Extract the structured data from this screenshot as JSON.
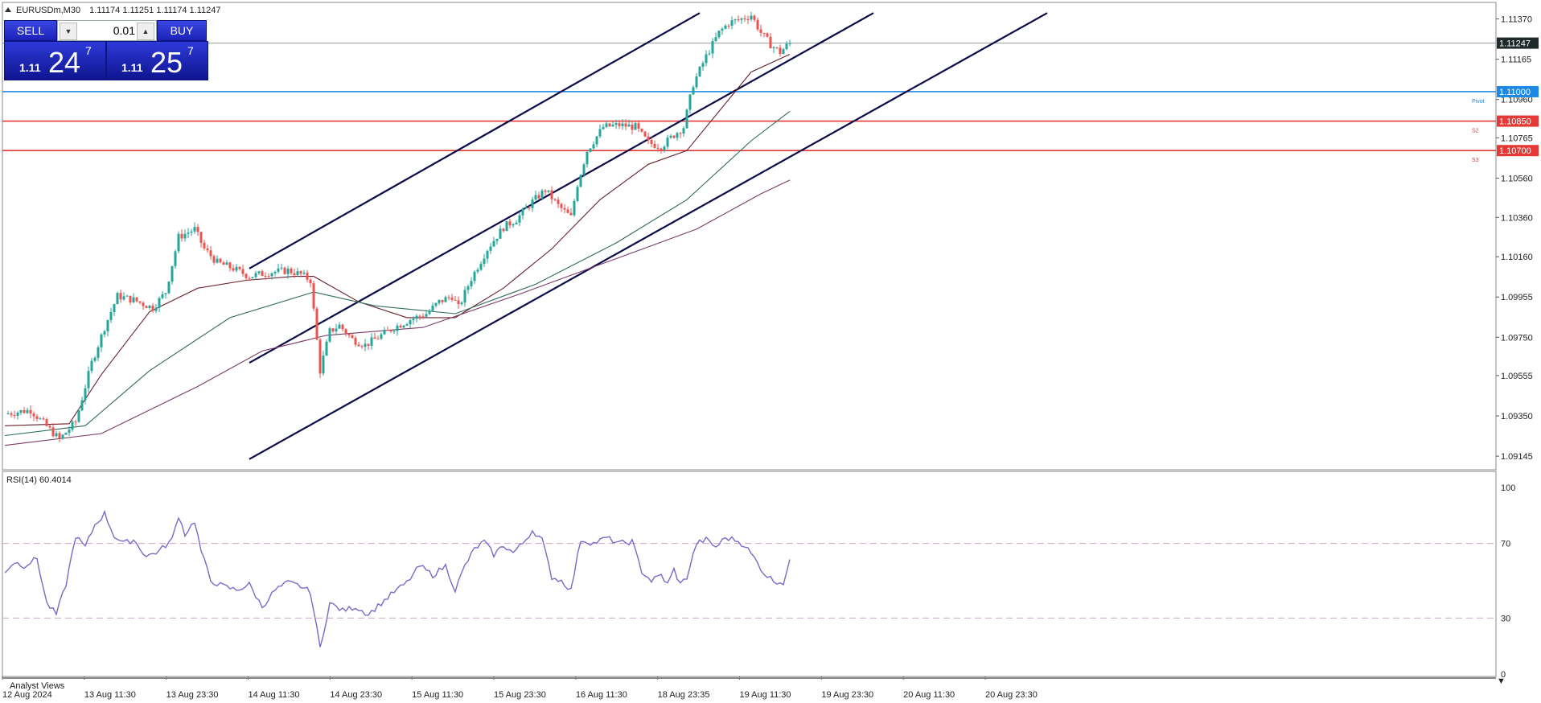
{
  "header": {
    "symbol_label": "EURUSDm,M30",
    "ohlc": "1.11174 1.11251 1.11174 1.11247"
  },
  "trade_panel": {
    "sell_label": "SELL",
    "buy_label": "BUY",
    "lot_value": "0.01",
    "sell_price_small": "1.11",
    "sell_price_big": "24",
    "sell_price_sup": "7",
    "buy_price_small": "1.11",
    "buy_price_big": "25",
    "buy_price_sup": "7"
  },
  "colors": {
    "candle_up": "#26a69a",
    "candle_down": "#ef5350",
    "channel": "#0a0a4a",
    "pivot": "#1e88e5",
    "support": "#e53935",
    "rsi_line": "#7b68c8"
  },
  "chart_data": [
    {
      "type": "candlestick",
      "title": "EURUSDm,M30",
      "price_axis_ticks": [
        "1.11370",
        "1.11165",
        "1.10960",
        "1.10765",
        "1.10560",
        "1.10360",
        "1.10160",
        "1.09955",
        "1.09750",
        "1.09555",
        "1.09350",
        "1.09145"
      ],
      "ylim": [
        1.0908,
        1.1145
      ],
      "current_price": 1.11247,
      "current_price_label": "1.11247",
      "horizontal_levels": [
        {
          "name": "Pivot",
          "value": 1.11,
          "label": "1.11000",
          "color": "#1e88e5"
        },
        {
          "name": "S2",
          "value": 1.1085,
          "label": "1.10850",
          "color": "#e53935"
        },
        {
          "name": "S3",
          "value": 1.107,
          "label": "1.10700",
          "color": "#e53935"
        }
      ],
      "time_labels": [
        "12 Aug 2024",
        "13 Aug 11:30",
        "13 Aug 23:30",
        "14 Aug 11:30",
        "14 Aug 23:30",
        "15 Aug 11:30",
        "15 Aug 23:30",
        "16 Aug 11:30",
        "18 Aug 23:35",
        "19 Aug 11:30",
        "19 Aug 23:30",
        "20 Aug 11:30",
        "20 Aug 23:30"
      ],
      "price_path": [
        {
          "i": 0,
          "p": 1.0936
        },
        {
          "i": 8,
          "p": 1.0938
        },
        {
          "i": 14,
          "p": 1.0928
        },
        {
          "i": 17,
          "p": 1.0923
        },
        {
          "i": 22,
          "p": 1.0932
        },
        {
          "i": 27,
          "p": 1.0962
        },
        {
          "i": 31,
          "p": 1.098
        },
        {
          "i": 35,
          "p": 1.0996
        },
        {
          "i": 40,
          "p": 1.0994
        },
        {
          "i": 46,
          "p": 1.099
        },
        {
          "i": 50,
          "p": 1.0998
        },
        {
          "i": 54,
          "p": 1.1026
        },
        {
          "i": 59,
          "p": 1.103
        },
        {
          "i": 62,
          "p": 1.102
        },
        {
          "i": 66,
          "p": 1.1013
        },
        {
          "i": 71,
          "p": 1.101
        },
        {
          "i": 76,
          "p": 1.1006
        },
        {
          "i": 82,
          "p": 1.1008
        },
        {
          "i": 88,
          "p": 1.1009
        },
        {
          "i": 92,
          "p": 1.1007
        },
        {
          "i": 95,
          "p": 1.1004
        },
        {
          "i": 98,
          "p": 1.0958
        },
        {
          "i": 101,
          "p": 1.0978
        },
        {
          "i": 104,
          "p": 1.0981
        },
        {
          "i": 108,
          "p": 1.0974
        },
        {
          "i": 112,
          "p": 1.0971
        },
        {
          "i": 116,
          "p": 1.0975
        },
        {
          "i": 121,
          "p": 1.098
        },
        {
          "i": 126,
          "p": 1.0984
        },
        {
          "i": 131,
          "p": 1.0987
        },
        {
          "i": 135,
          "p": 1.0993
        },
        {
          "i": 139,
          "p": 1.0996
        },
        {
          "i": 141,
          "p": 1.099
        },
        {
          "i": 145,
          "p": 1.1005
        },
        {
          "i": 150,
          "p": 1.102
        },
        {
          "i": 155,
          "p": 1.1031
        },
        {
          "i": 159,
          "p": 1.1035
        },
        {
          "i": 164,
          "p": 1.1044
        },
        {
          "i": 168,
          "p": 1.105
        },
        {
          "i": 172,
          "p": 1.1042
        },
        {
          "i": 176,
          "p": 1.1036
        },
        {
          "i": 178,
          "p": 1.1053
        },
        {
          "i": 181,
          "p": 1.107
        },
        {
          "i": 186,
          "p": 1.1082
        },
        {
          "i": 191,
          "p": 1.1083
        },
        {
          "i": 196,
          "p": 1.1082
        },
        {
          "i": 200,
          "p": 1.1074
        },
        {
          "i": 204,
          "p": 1.1072
        },
        {
          "i": 208,
          "p": 1.1078
        },
        {
          "i": 211,
          "p": 1.1082
        },
        {
          "i": 214,
          "p": 1.1104
        },
        {
          "i": 218,
          "p": 1.1118
        },
        {
          "i": 222,
          "p": 1.113
        },
        {
          "i": 225,
          "p": 1.1135
        },
        {
          "i": 229,
          "p": 1.1137
        },
        {
          "i": 232,
          "p": 1.1139
        },
        {
          "i": 235,
          "p": 1.113
        },
        {
          "i": 238,
          "p": 1.1124
        },
        {
          "i": 241,
          "p": 1.112
        },
        {
          "i": 244,
          "p": 1.1125
        }
      ],
      "moving_averages": [
        {
          "color": "#6b1f2a",
          "points": [
            [
              0,
              1.093
            ],
            [
              20,
              1.0931
            ],
            [
              30,
              1.0956
            ],
            [
              45,
              1.0988
            ],
            [
              60,
              1.1
            ],
            [
              75,
              1.1004
            ],
            [
              90,
              1.1006
            ],
            [
              96,
              1.1006
            ],
            [
              110,
              1.0993
            ],
            [
              125,
              1.0985
            ],
            [
              140,
              1.0985
            ],
            [
              155,
              1.1
            ],
            [
              170,
              1.102
            ],
            [
              185,
              1.1045
            ],
            [
              200,
              1.1063
            ],
            [
              212,
              1.107
            ],
            [
              222,
              1.109
            ],
            [
              232,
              1.111
            ],
            [
              244,
              1.1119
            ]
          ]
        },
        {
          "color": "#2f6b5a",
          "points": [
            [
              0,
              1.0925
            ],
            [
              25,
              1.093
            ],
            [
              45,
              1.0958
            ],
            [
              70,
              1.0985
            ],
            [
              96,
              1.0998
            ],
            [
              115,
              1.0991
            ],
            [
              140,
              1.0987
            ],
            [
              165,
              1.1002
            ],
            [
              190,
              1.1023
            ],
            [
              212,
              1.1045
            ],
            [
              232,
              1.1075
            ],
            [
              244,
              1.109
            ]
          ]
        },
        {
          "color": "#7a3a6a",
          "points": [
            [
              0,
              1.092
            ],
            [
              30,
              1.0926
            ],
            [
              60,
              1.095
            ],
            [
              80,
              1.0968
            ],
            [
              100,
              1.0976
            ],
            [
              130,
              1.098
            ],
            [
              160,
              1.0997
            ],
            [
              190,
              1.1015
            ],
            [
              215,
              1.103
            ],
            [
              235,
              1.1048
            ],
            [
              244,
              1.1055
            ]
          ]
        }
      ]
    },
    {
      "type": "line",
      "title": "RSI(14) 60.4014",
      "ylim": [
        0,
        100
      ],
      "y_ticks": [
        "100",
        "70",
        "30",
        "0"
      ],
      "levels": [
        70,
        30
      ],
      "rsi_path": [
        {
          "i": 0,
          "v": 55
        },
        {
          "i": 3,
          "v": 60
        },
        {
          "i": 6,
          "v": 58
        },
        {
          "i": 10,
          "v": 62
        },
        {
          "i": 13,
          "v": 38
        },
        {
          "i": 16,
          "v": 32
        },
        {
          "i": 19,
          "v": 48
        },
        {
          "i": 22,
          "v": 74
        },
        {
          "i": 25,
          "v": 68
        },
        {
          "i": 28,
          "v": 80
        },
        {
          "i": 31,
          "v": 86
        },
        {
          "i": 34,
          "v": 74
        },
        {
          "i": 37,
          "v": 70
        },
        {
          "i": 40,
          "v": 72
        },
        {
          "i": 44,
          "v": 63
        },
        {
          "i": 48,
          "v": 66
        },
        {
          "i": 52,
          "v": 72
        },
        {
          "i": 54,
          "v": 85
        },
        {
          "i": 56,
          "v": 75
        },
        {
          "i": 59,
          "v": 82
        },
        {
          "i": 61,
          "v": 66
        },
        {
          "i": 64,
          "v": 50
        },
        {
          "i": 68,
          "v": 47
        },
        {
          "i": 72,
          "v": 45
        },
        {
          "i": 76,
          "v": 48
        },
        {
          "i": 80,
          "v": 36
        },
        {
          "i": 84,
          "v": 45
        },
        {
          "i": 88,
          "v": 49
        },
        {
          "i": 92,
          "v": 47
        },
        {
          "i": 95,
          "v": 44
        },
        {
          "i": 98,
          "v": 14
        },
        {
          "i": 101,
          "v": 38
        },
        {
          "i": 105,
          "v": 34
        },
        {
          "i": 109,
          "v": 36
        },
        {
          "i": 113,
          "v": 32
        },
        {
          "i": 117,
          "v": 38
        },
        {
          "i": 121,
          "v": 44
        },
        {
          "i": 125,
          "v": 49
        },
        {
          "i": 129,
          "v": 58
        },
        {
          "i": 133,
          "v": 53
        },
        {
          "i": 137,
          "v": 58
        },
        {
          "i": 140,
          "v": 45
        },
        {
          "i": 143,
          "v": 58
        },
        {
          "i": 146,
          "v": 67
        },
        {
          "i": 149,
          "v": 71
        },
        {
          "i": 152,
          "v": 64
        },
        {
          "i": 155,
          "v": 69
        },
        {
          "i": 158,
          "v": 65
        },
        {
          "i": 161,
          "v": 70
        },
        {
          "i": 164,
          "v": 77
        },
        {
          "i": 167,
          "v": 72
        },
        {
          "i": 170,
          "v": 52
        },
        {
          "i": 173,
          "v": 50
        },
        {
          "i": 176,
          "v": 45
        },
        {
          "i": 179,
          "v": 72
        },
        {
          "i": 183,
          "v": 70
        },
        {
          "i": 187,
          "v": 73
        },
        {
          "i": 191,
          "v": 70
        },
        {
          "i": 195,
          "v": 71
        },
        {
          "i": 198,
          "v": 55
        },
        {
          "i": 201,
          "v": 50
        },
        {
          "i": 204,
          "v": 53
        },
        {
          "i": 206,
          "v": 48
        },
        {
          "i": 208,
          "v": 56
        },
        {
          "i": 210,
          "v": 48
        },
        {
          "i": 212,
          "v": 52
        },
        {
          "i": 215,
          "v": 70
        },
        {
          "i": 218,
          "v": 72
        },
        {
          "i": 221,
          "v": 68
        },
        {
          "i": 224,
          "v": 73
        },
        {
          "i": 227,
          "v": 72
        },
        {
          "i": 230,
          "v": 69
        },
        {
          "i": 233,
          "v": 62
        },
        {
          "i": 236,
          "v": 54
        },
        {
          "i": 239,
          "v": 50
        },
        {
          "i": 242,
          "v": 49
        },
        {
          "i": 244,
          "v": 60
        }
      ]
    }
  ],
  "footer": {
    "panel_label": "Analyst Views"
  }
}
